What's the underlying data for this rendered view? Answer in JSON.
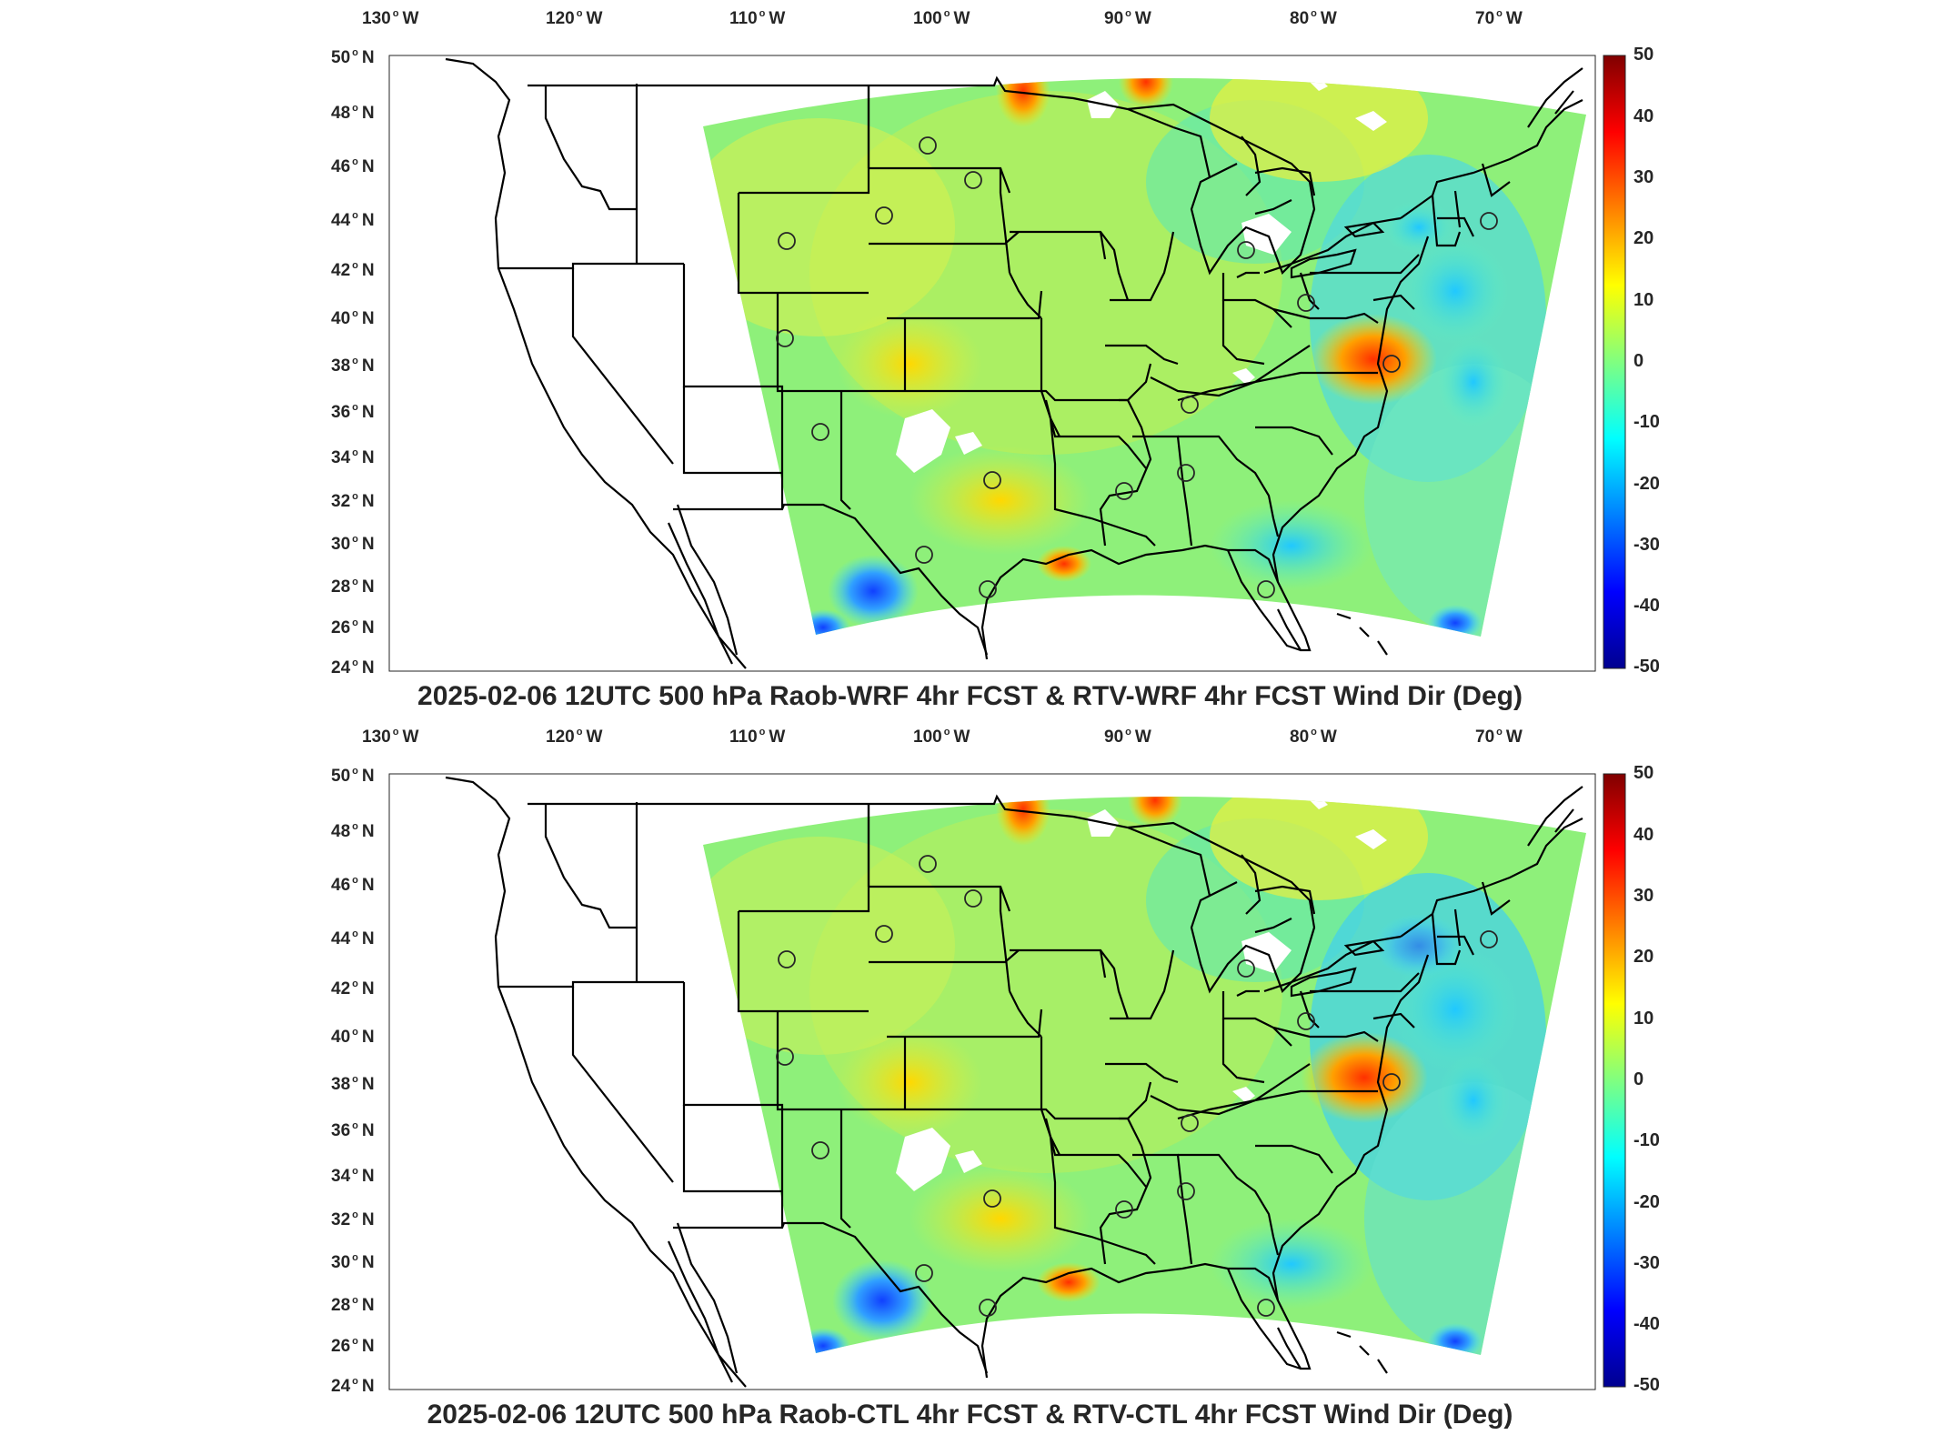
{
  "colorbar": {
    "ticks": [
      "50",
      "40",
      "30",
      "20",
      "10",
      "0",
      "-10",
      "-20",
      "-30",
      "-40",
      "-50"
    ]
  },
  "lon_labels": [
    {
      "deg": "130",
      "dir": "W"
    },
    {
      "deg": "120",
      "dir": "W"
    },
    {
      "deg": "110",
      "dir": "W"
    },
    {
      "deg": "100",
      "dir": "W"
    },
    {
      "deg": "90",
      "dir": "W"
    },
    {
      "deg": "80",
      "dir": "W"
    },
    {
      "deg": "70",
      "dir": "W"
    }
  ],
  "lat_labels": [
    {
      "deg": "50",
      "dir": "N"
    },
    {
      "deg": "48",
      "dir": "N"
    },
    {
      "deg": "46",
      "dir": "N"
    },
    {
      "deg": "44",
      "dir": "N"
    },
    {
      "deg": "42",
      "dir": "N"
    },
    {
      "deg": "40",
      "dir": "N"
    },
    {
      "deg": "38",
      "dir": "N"
    },
    {
      "deg": "36",
      "dir": "N"
    },
    {
      "deg": "34",
      "dir": "N"
    },
    {
      "deg": "32",
      "dir": "N"
    },
    {
      "deg": "30",
      "dir": "N"
    },
    {
      "deg": "28",
      "dir": "N"
    },
    {
      "deg": "26",
      "dir": "N"
    },
    {
      "deg": "24",
      "dir": "N"
    }
  ],
  "panels": [
    {
      "title": "2025-02-06 12UTC 500 hPa Raob-WRF 4hr FCST & RTV-WRF 4hr FCST Wind Dir (Deg)"
    },
    {
      "title": "2025-02-06 12UTC 500 hPa Raob-CTL 4hr FCST & RTV-CTL 4hr FCST Wind Dir (Deg)"
    }
  ],
  "colormap": [
    "#00008f",
    "#0000ff",
    "#0080ff",
    "#00ffff",
    "#80ff80",
    "#ffff00",
    "#ff8000",
    "#ff0000",
    "#800000"
  ]
}
